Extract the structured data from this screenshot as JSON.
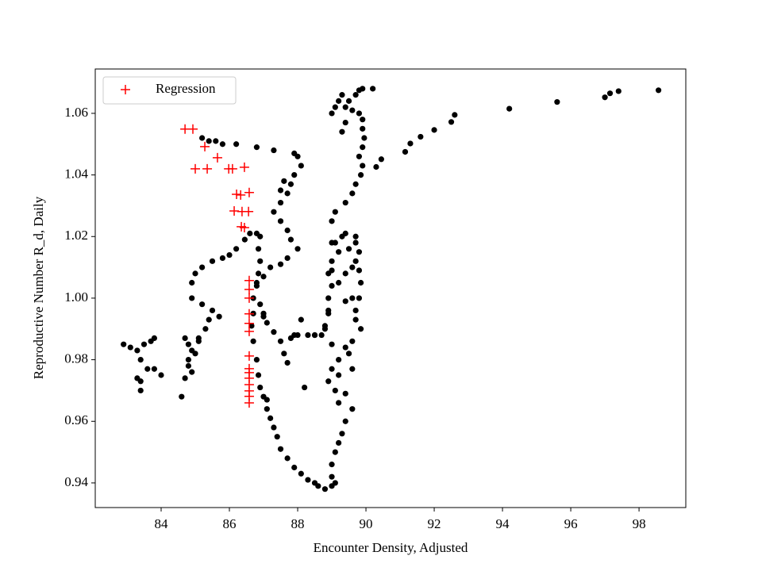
{
  "chart_data": {
    "type": "scatter",
    "xlabel": "Encounter Density, Adjusted",
    "ylabel": "Reproductive Number R_d, Daily",
    "xlim": [
      82.07,
      99.37
    ],
    "ylim": [
      0.932,
      1.0744
    ],
    "xticks": [
      84,
      86,
      88,
      90,
      92,
      94,
      96,
      98
    ],
    "yticks": [
      0.94,
      0.96,
      0.98,
      {
        "value": 1,
        "label": "1.00"
      },
      1.02,
      1.04,
      1.06
    ],
    "grid": false,
    "legend": "upper left",
    "series": [
      {
        "color": "#000000",
        "marker": "o",
        "x": [
          98.57,
          97.4,
          97.15,
          97.0,
          95.6,
          94.2,
          92.6,
          92.5,
          92.0,
          91.6,
          91.3,
          91.15,
          90.45,
          90.3,
          90.2,
          89.9,
          89.8,
          89.7,
          89.5,
          89.4,
          89.6,
          89.8,
          89.9,
          89.9,
          89.95,
          89.9,
          89.8,
          89.9,
          89.85,
          89.7,
          89.6,
          89.4,
          89.1,
          89.0,
          89.4,
          89.7,
          89.8,
          89.7,
          89.8,
          89.85,
          89.8,
          89.7,
          89.85,
          89.6,
          89.4,
          89.2,
          89.0,
          88.9,
          89.3,
          89.2,
          89.1,
          89.4,
          89.3,
          89.0,
          89.1,
          89.2,
          89.0,
          88.9,
          89.0,
          88.9,
          88.9,
          88.8,
          88.7,
          88.5,
          89.6,
          89.4,
          89.3,
          89.2,
          89.1,
          89.0,
          89.0,
          89.1,
          89.0,
          88.8,
          88.6,
          88.5,
          88.3,
          88.1,
          87.9,
          87.7,
          87.5,
          87.4,
          87.3,
          87.2,
          87.1,
          87.0,
          86.9,
          86.85,
          86.8,
          86.7,
          86.65,
          86.7,
          86.7,
          86.8,
          86.85,
          86.9,
          86.85,
          86.9,
          86.8,
          86.6,
          86.45,
          86.2,
          86.0,
          85.8,
          85.5,
          85.2,
          85.0,
          84.9,
          84.9,
          85.2,
          85.5,
          85.7,
          85.4,
          85.3,
          85.1,
          85.0,
          84.8,
          84.7,
          84.6,
          82.9,
          83.1,
          83.3,
          83.4,
          83.6,
          83.8,
          84.0,
          83.4,
          83.4,
          83.3,
          83.5,
          83.7,
          83.8,
          84.7,
          84.8,
          84.9,
          85.1,
          84.8,
          84.9,
          85.2,
          85.4,
          85.6,
          85.8,
          86.2,
          86.8,
          87.3,
          87.9,
          88.0,
          88.1,
          87.9,
          87.8,
          87.7,
          87.5,
          87.3,
          87.5,
          87.7,
          87.8,
          88.0,
          87.7,
          87.5,
          87.2,
          87.0,
          86.8,
          86.9,
          87.0,
          87.1,
          87.3,
          87.5,
          87.6,
          87.7,
          87.8,
          88.0,
          88.1,
          88.3,
          88.5,
          88.8,
          88.9,
          87.9,
          87.5,
          87.6,
          87.0,
          88.2,
          87.1,
          89.0,
          89.3,
          89.5,
          89.7,
          89.6,
          89.4,
          89.2,
          89.0,
          89.6,
          89.4,
          89.7,
          89.5,
          89.6,
          89.2,
          89.1,
          89.4,
          89.2,
          89.0
        ],
        "values": [
          1.0675,
          1.0672,
          1.0665,
          1.0652,
          1.0637,
          1.0615,
          1.0595,
          1.0572,
          1.0546,
          1.0524,
          1.0502,
          1.0475,
          1.0451,
          1.0426,
          1.068,
          1.068,
          1.0675,
          1.066,
          1.064,
          1.062,
          1.061,
          1.06,
          1.058,
          1.055,
          1.052,
          1.049,
          1.046,
          1.043,
          1.04,
          1.037,
          1.034,
          1.031,
          1.028,
          1.025,
          1.021,
          1.018,
          1.015,
          1.012,
          1.009,
          1.005,
          1.0,
          0.996,
          0.99,
          0.986,
          0.984,
          0.98,
          0.977,
          0.973,
          1.066,
          1.064,
          1.062,
          1.057,
          1.054,
          1.06,
          1.018,
          1.015,
          1.012,
          1.008,
          1.004,
          1.0,
          0.996,
          0.99,
          0.988,
          0.988,
          0.964,
          0.96,
          0.956,
          0.953,
          0.95,
          0.946,
          0.942,
          0.94,
          0.939,
          0.938,
          0.939,
          0.94,
          0.941,
          0.943,
          0.945,
          0.948,
          0.951,
          0.955,
          0.958,
          0.961,
          0.964,
          0.968,
          0.971,
          0.975,
          0.98,
          0.986,
          0.991,
          0.995,
          1.0,
          1.005,
          1.008,
          1.012,
          1.016,
          1.02,
          1.021,
          1.021,
          1.019,
          1.016,
          1.014,
          1.013,
          1.012,
          1.01,
          1.008,
          1.005,
          1.0,
          0.998,
          0.996,
          0.994,
          0.993,
          0.99,
          0.986,
          0.982,
          0.978,
          0.974,
          0.968,
          0.985,
          0.984,
          0.983,
          0.98,
          0.977,
          0.977,
          0.975,
          0.973,
          0.97,
          0.974,
          0.985,
          0.986,
          0.987,
          0.987,
          0.985,
          0.983,
          0.987,
          0.98,
          0.976,
          1.052,
          1.051,
          1.051,
          1.05,
          1.05,
          1.049,
          1.048,
          1.047,
          1.046,
          1.043,
          1.04,
          1.037,
          1.034,
          1.031,
          1.028,
          1.025,
          1.022,
          1.019,
          1.016,
          1.013,
          1.011,
          1.01,
          1.007,
          1.004,
          0.998,
          0.995,
          0.992,
          0.989,
          0.986,
          0.982,
          0.979,
          0.987,
          0.988,
          0.993,
          0.988,
          0.988,
          0.991,
          0.995,
          0.988,
          1.035,
          1.038,
          0.994,
          0.971,
          0.967,
          1.018,
          1.02,
          1.016,
          1.02,
          1.01,
          1.008,
          1.005,
          1.009,
          1.0,
          0.999,
          0.993,
          0.982,
          0.977,
          0.975,
          0.97,
          0.969,
          0.966,
          0.985
        ]
      },
      {
        "name": "Regression",
        "color": "#ff0000",
        "marker": "+",
        "x": [
          84.7,
          84.93,
          85.28,
          85.65,
          85.0,
          85.35,
          85.98,
          86.09,
          86.44,
          86.21,
          86.33,
          86.58,
          86.14,
          86.37,
          86.56,
          86.35,
          86.44,
          86.58,
          86.58,
          86.58,
          86.58,
          86.58,
          86.58,
          86.58,
          86.58,
          86.58,
          86.58,
          86.58,
          86.58,
          86.58,
          86.58
        ],
        "values": [
          1.0549,
          1.0549,
          1.0492,
          1.0456,
          1.042,
          1.042,
          1.042,
          1.042,
          1.0425,
          1.0337,
          1.0335,
          1.0343,
          1.0283,
          1.0281,
          1.0281,
          1.0232,
          1.0229,
          1.0057,
          1.0028,
          1.0,
          0.9949,
          0.9918,
          0.9892,
          0.9812,
          0.9771,
          0.9758,
          0.974,
          0.9719,
          0.9699,
          0.9681,
          0.966
        ]
      }
    ]
  }
}
